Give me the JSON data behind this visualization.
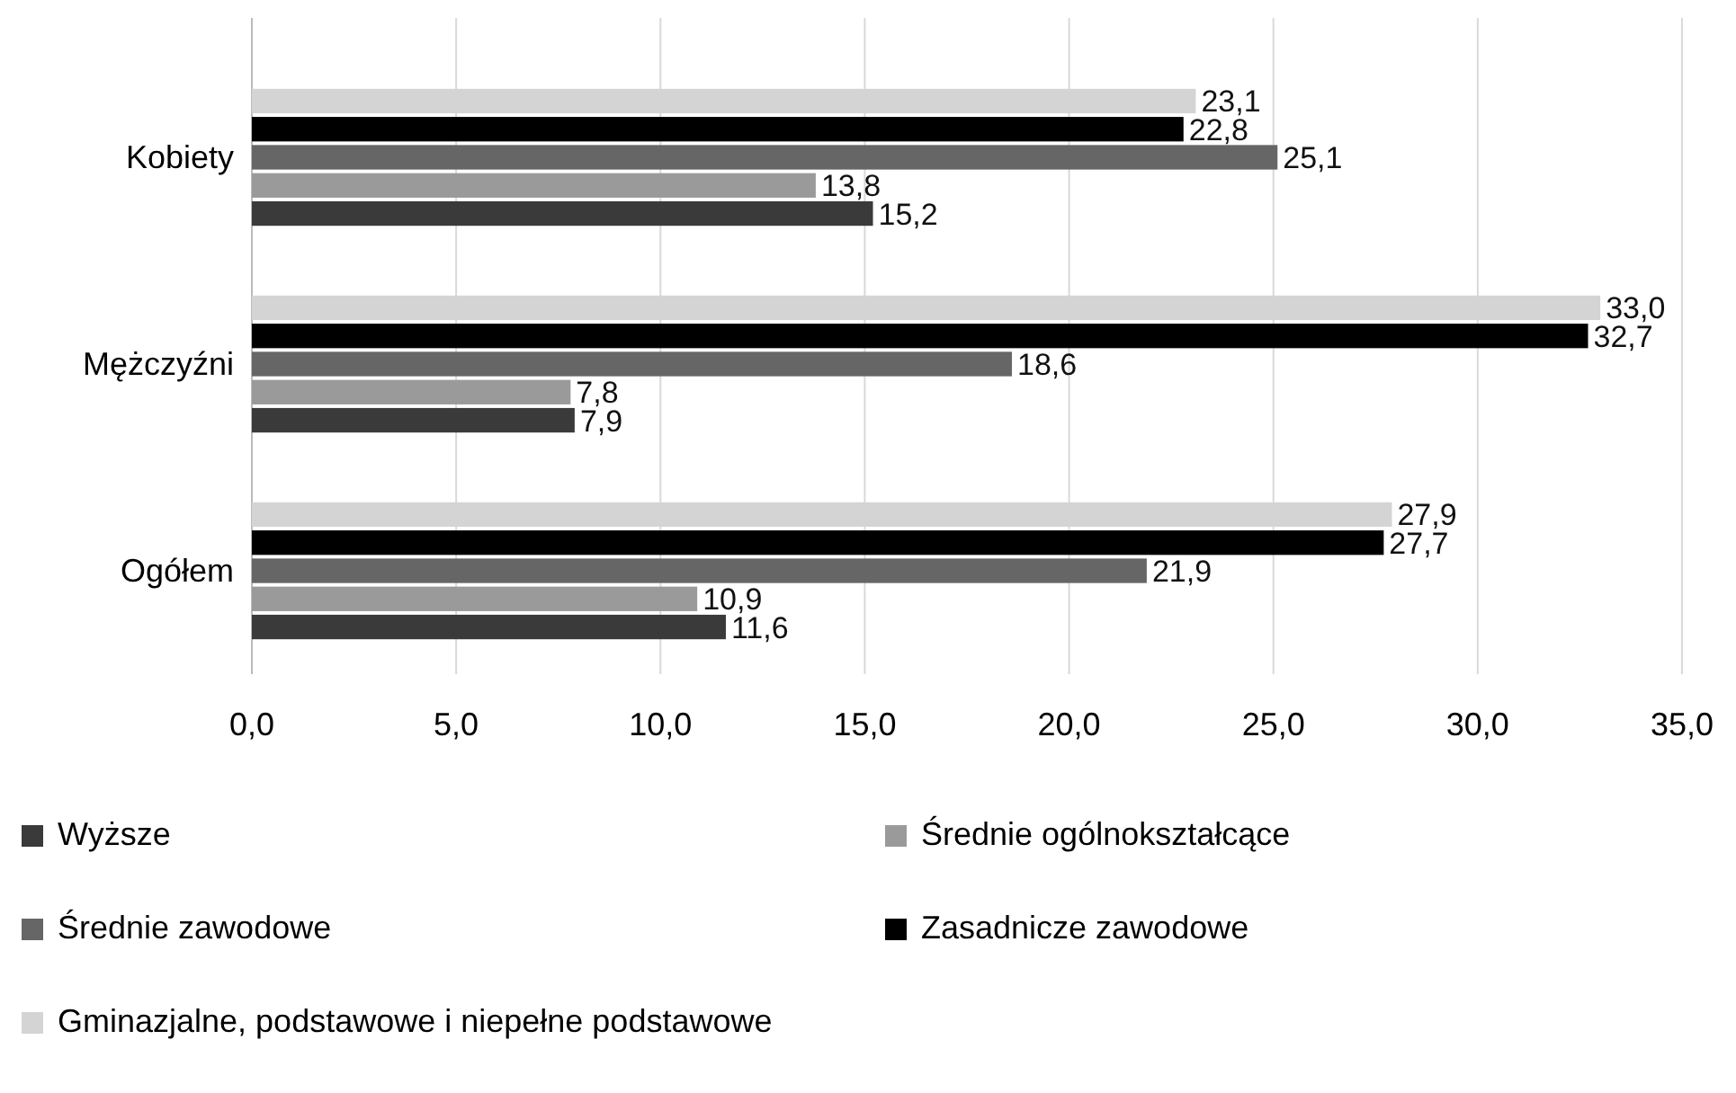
{
  "chart_data": {
    "type": "bar",
    "orientation": "horizontal",
    "categories": [
      "Kobiety",
      "Mężczyźni",
      "Ogółem"
    ],
    "series": [
      {
        "name": "Wyższe",
        "color": "#3a3a3a",
        "values": [
          15.2,
          7.9,
          11.6
        ],
        "value_labels": [
          "15,2",
          "7,9",
          "11,6"
        ]
      },
      {
        "name": "Średnie ogólnokształcące",
        "color": "#9a9a9a",
        "values": [
          13.8,
          7.8,
          10.9
        ],
        "value_labels": [
          "13,8",
          "7,8",
          "10,9"
        ]
      },
      {
        "name": "Średnie zawodowe",
        "color": "#666666",
        "values": [
          25.1,
          18.6,
          21.9
        ],
        "value_labels": [
          "25,1",
          "18,6",
          "21,9"
        ]
      },
      {
        "name": "Zasadnicze zawodowe",
        "color": "#000000",
        "values": [
          22.8,
          32.7,
          27.7
        ],
        "value_labels": [
          "22,8",
          "32,7",
          "27,7"
        ]
      },
      {
        "name": "Gminazjalne, podstawowe i niepełne podstawowe",
        "color": "#d4d4d4",
        "values": [
          23.1,
          33.0,
          27.9
        ],
        "value_labels": [
          "23,1",
          "33,0",
          "27,9"
        ]
      }
    ],
    "xlim": [
      0,
      35
    ],
    "xticks": [
      {
        "value": 0,
        "label": "0,0"
      },
      {
        "value": 5,
        "label": "5,0"
      },
      {
        "value": 10,
        "label": "10,0"
      },
      {
        "value": 15,
        "label": "15,0"
      },
      {
        "value": 20,
        "label": "20,0"
      },
      {
        "value": 25,
        "label": "25,0"
      },
      {
        "value": 30,
        "label": "30,0"
      },
      {
        "value": 35,
        "label": "35,0"
      }
    ],
    "grid": "x",
    "legend": "bottom"
  }
}
